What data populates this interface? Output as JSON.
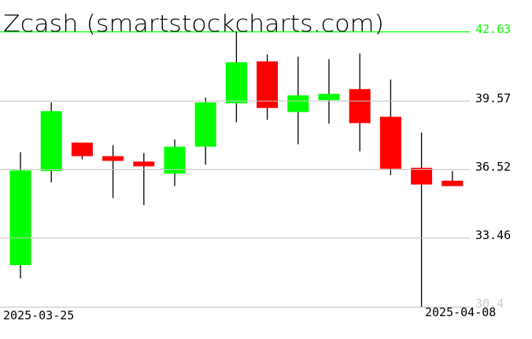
{
  "chart_data": {
    "type": "candlestick",
    "title": "Zcash (smartstockcharts.com)",
    "x_tick_labels": [
      "2025-03-25",
      "2025-04-08"
    ],
    "y_tick_labels": [
      "42.63",
      "39.57",
      "36.52",
      "33.46",
      "30.4"
    ],
    "ylim": [
      30.4,
      42.63
    ],
    "grid": true,
    "colors": {
      "up": "#00ff00",
      "down": "#ff0000",
      "wick": "#000000",
      "grid": "#cccccc",
      "max_line": "#00ff00",
      "min_label": "#cccccc"
    },
    "candles": [
      {
        "date": "2025-03-25",
        "open": 32.25,
        "high": 37.27,
        "low": 31.66,
        "close": 36.46
      },
      {
        "date": "2025-03-26",
        "open": 36.43,
        "high": 39.48,
        "low": 35.93,
        "close": 39.09
      },
      {
        "date": "2025-03-27",
        "open": 37.69,
        "high": 37.69,
        "low": 36.95,
        "close": 37.09
      },
      {
        "date": "2025-03-28",
        "open": 37.09,
        "high": 37.58,
        "low": 35.23,
        "close": 36.88
      },
      {
        "date": "2025-03-29",
        "open": 36.85,
        "high": 37.23,
        "low": 34.92,
        "close": 36.64
      },
      {
        "date": "2025-03-30",
        "open": 36.32,
        "high": 37.83,
        "low": 35.76,
        "close": 37.51
      },
      {
        "date": "2025-03-31",
        "open": 37.51,
        "high": 39.69,
        "low": 36.71,
        "close": 39.48
      },
      {
        "date": "2025-04-01",
        "open": 39.44,
        "high": 42.63,
        "low": 38.6,
        "close": 41.26
      },
      {
        "date": "2025-04-02",
        "open": 41.3,
        "high": 41.61,
        "low": 38.7,
        "close": 39.23
      },
      {
        "date": "2025-04-03",
        "open": 39.05,
        "high": 41.51,
        "low": 37.62,
        "close": 39.79
      },
      {
        "date": "2025-04-04",
        "open": 39.58,
        "high": 41.4,
        "low": 38.53,
        "close": 39.86
      },
      {
        "date": "2025-04-05",
        "open": 40.07,
        "high": 41.65,
        "low": 37.3,
        "close": 38.56
      },
      {
        "date": "2025-04-06",
        "open": 38.84,
        "high": 40.49,
        "low": 36.25,
        "close": 36.53
      },
      {
        "date": "2025-04-07",
        "open": 36.57,
        "high": 38.14,
        "low": 30.4,
        "close": 35.83
      },
      {
        "date": "2025-04-08",
        "open": 36.0,
        "high": 36.43,
        "low": 35.76,
        "close": 35.76
      }
    ]
  }
}
